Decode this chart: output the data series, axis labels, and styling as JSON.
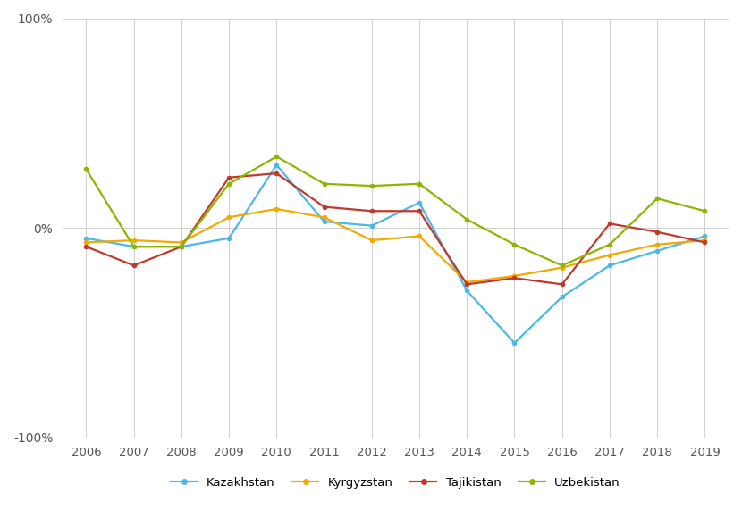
{
  "years": [
    2006,
    2007,
    2008,
    2009,
    2010,
    2011,
    2012,
    2013,
    2014,
    2015,
    2016,
    2017,
    2018,
    2019
  ],
  "Kazakhstan": [
    -5,
    -9,
    -9,
    -5,
    30,
    3,
    1,
    12,
    -30,
    -55,
    -33,
    -18,
    -11,
    -4
  ],
  "Kyrgyzstan": [
    -7,
    -6,
    -7,
    5,
    9,
    5,
    -6,
    -4,
    -26,
    -23,
    -19,
    -13,
    -8,
    -6
  ],
  "Tajikistan": [
    -9,
    -18,
    -9,
    24,
    26,
    10,
    8,
    8,
    -27,
    -24,
    -27,
    2,
    -2,
    -7
  ],
  "Uzbekistan": [
    28,
    -9,
    -9,
    21,
    34,
    21,
    20,
    21,
    4,
    -8,
    -18,
    -8,
    14,
    8
  ],
  "colors": {
    "Kazakhstan": "#4ab8e8",
    "Kyrgyzstan": "#f5a800",
    "Tajikistan": "#c0392b",
    "Uzbekistan": "#8db600"
  },
  "ylim": [
    -100,
    100
  ],
  "background_color": "#ffffff",
  "grid_color": "#d0d0d0",
  "legend_labels": [
    "Kazakhstan",
    "Kyrgyzstan",
    "Tajikistan",
    "Uzbekistan"
  ]
}
